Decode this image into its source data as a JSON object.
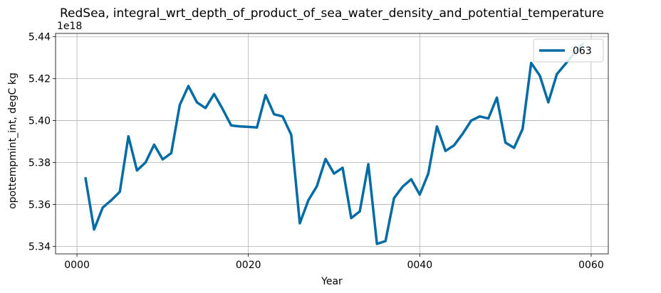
{
  "chart_data": {
    "type": "line",
    "title": "RedSea, integral_wrt_depth_of_product_of_sea_water_density_and_potential_temperature",
    "xlabel": "Year",
    "ylabel": "opottempmint_int, degC kg",
    "y_multiplier_label": "1e18",
    "xlim": [
      -2.5,
      62
    ],
    "ylim": [
      5.3364,
      5.4416
    ],
    "x_ticks": [
      0,
      20,
      40,
      60
    ],
    "x_tick_labels": [
      "0000",
      "0020",
      "0040",
      "0060"
    ],
    "y_ticks": [
      5.34,
      5.36,
      5.38,
      5.4,
      5.42,
      5.44
    ],
    "y_tick_labels": [
      "5.34",
      "5.36",
      "5.38",
      "5.40",
      "5.42",
      "5.44"
    ],
    "grid": true,
    "legend_position": "top-right",
    "series": [
      {
        "name": "063",
        "color": "#006ba4",
        "x": [
          1,
          2,
          3,
          4,
          5,
          6,
          7,
          8,
          9,
          10,
          11,
          12,
          13,
          14,
          15,
          16,
          17,
          18,
          19,
          20,
          21,
          22,
          23,
          24,
          25,
          26,
          27,
          28,
          29,
          30,
          31,
          32,
          33,
          34,
          35,
          36,
          37,
          38,
          39,
          40,
          41,
          42,
          43,
          44,
          45,
          46,
          47,
          48,
          49,
          50,
          51,
          52,
          53,
          54,
          55,
          56,
          57,
          58,
          59
        ],
        "values": [
          5.3725,
          5.348,
          5.3585,
          5.362,
          5.366,
          5.3925,
          5.3762,
          5.38,
          5.3885,
          5.3815,
          5.3845,
          5.4075,
          5.4165,
          5.4087,
          5.406,
          5.4127,
          5.4055,
          5.3977,
          5.3972,
          5.397,
          5.3967,
          5.4122,
          5.403,
          5.402,
          5.3932,
          5.351,
          5.362,
          5.3687,
          5.3817,
          5.3747,
          5.3775,
          5.3535,
          5.3567,
          5.3792,
          5.3412,
          5.3425,
          5.363,
          5.3685,
          5.372,
          5.3647,
          5.3747,
          5.3972,
          5.3855,
          5.3882,
          5.3937,
          5.4,
          5.402,
          5.401,
          5.411,
          5.3895,
          5.387,
          5.396,
          5.4275,
          5.4215,
          5.4087,
          5.4222,
          5.427,
          5.432,
          5.4365
        ]
      }
    ]
  }
}
